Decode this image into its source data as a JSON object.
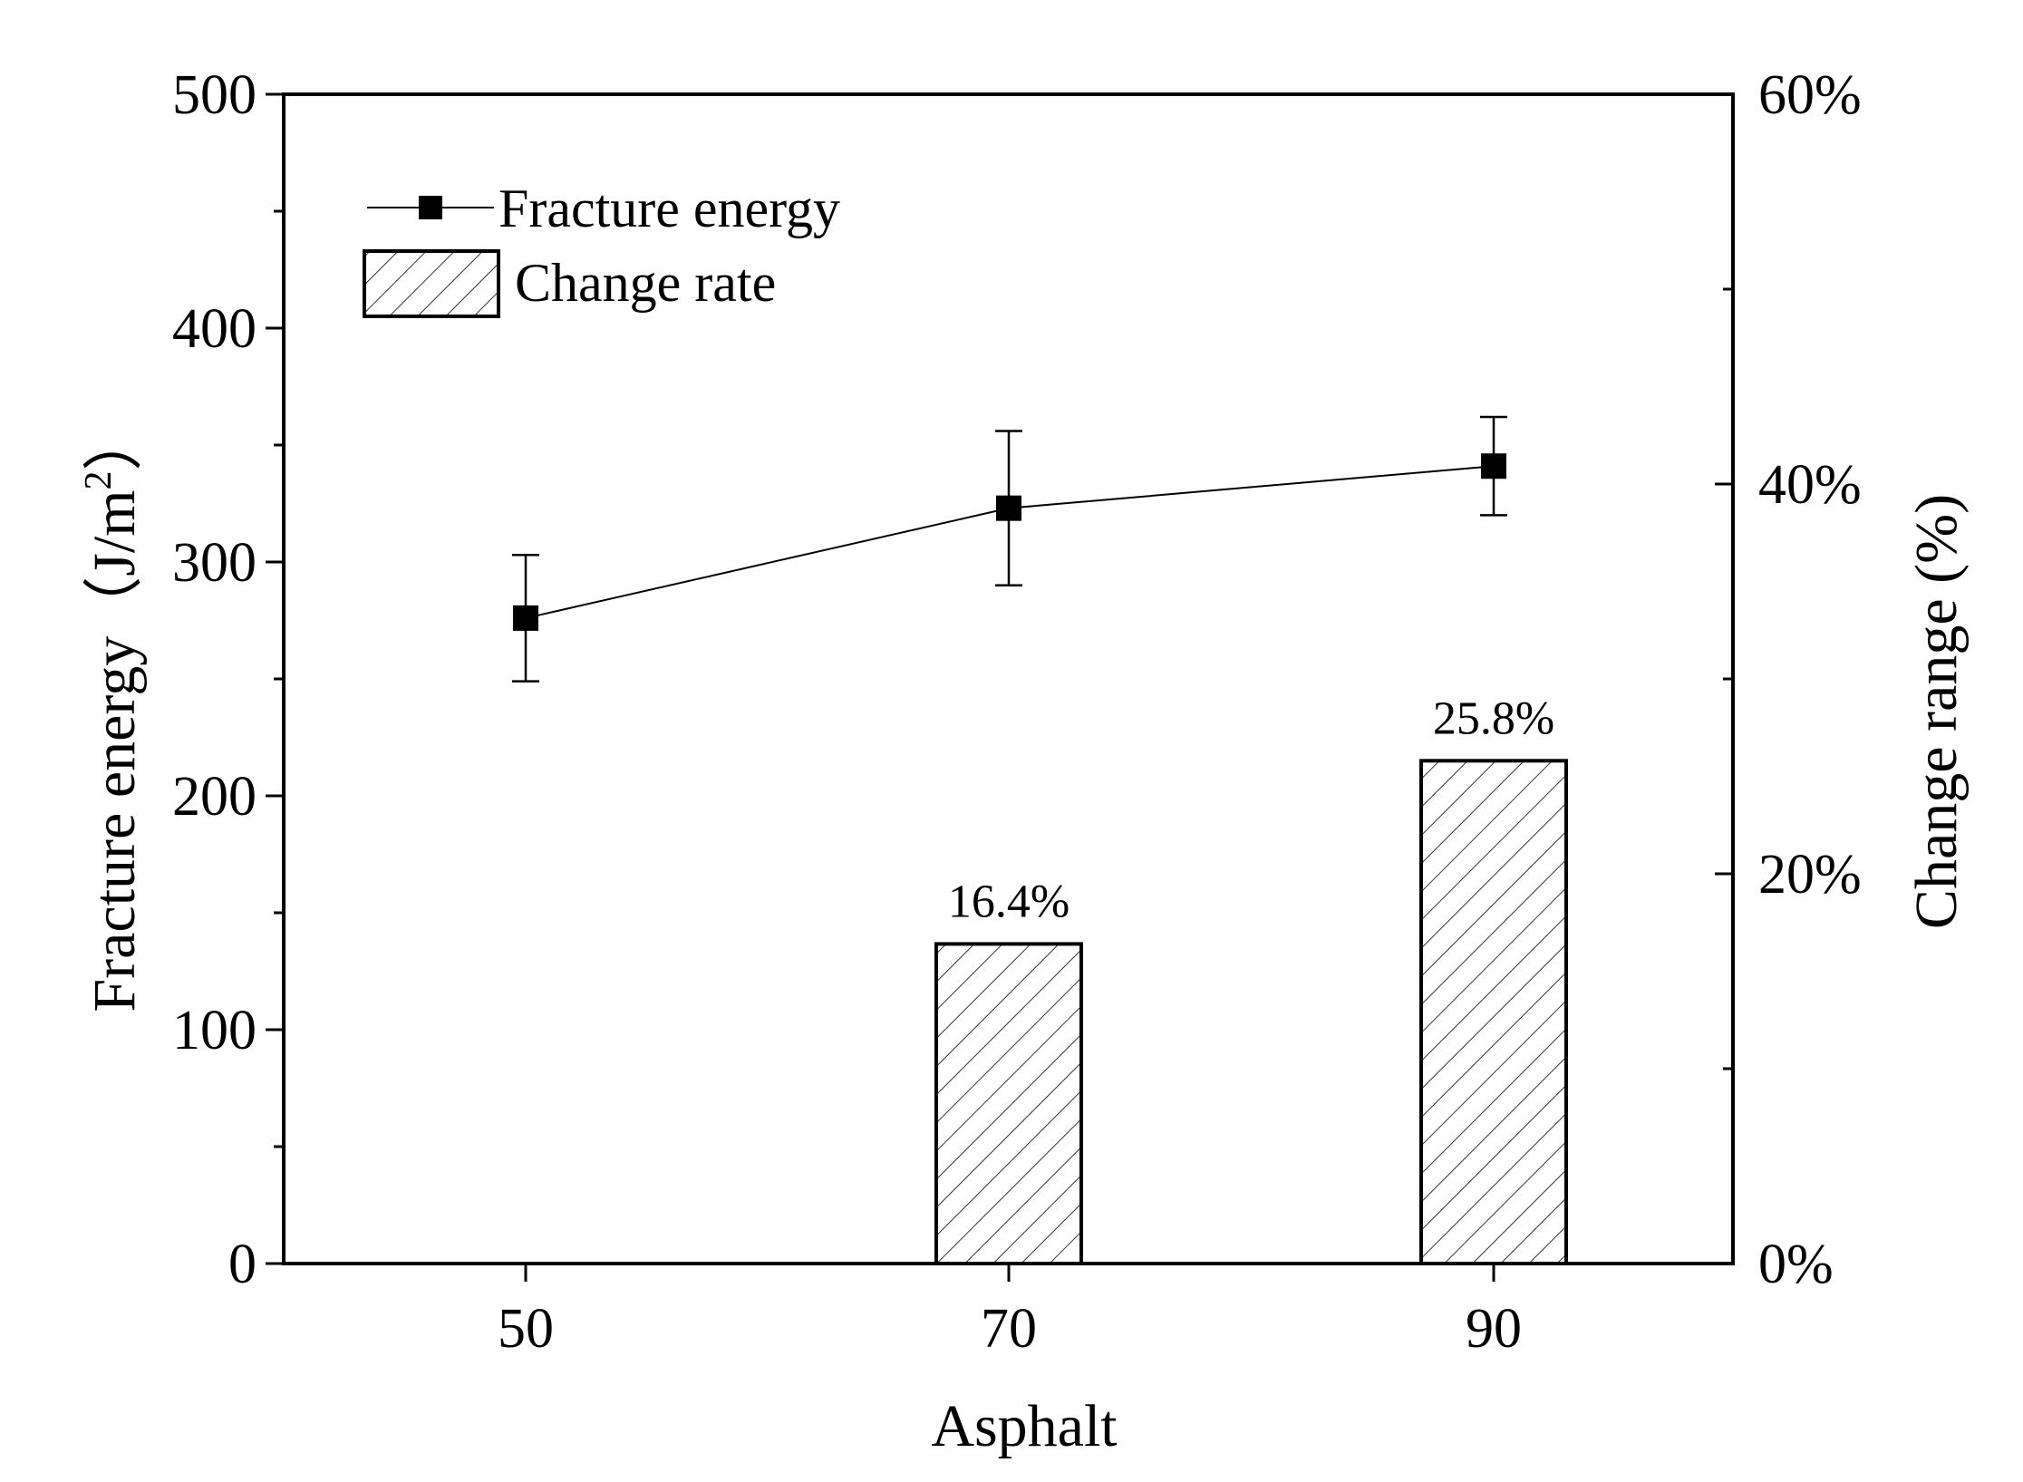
{
  "chart_data": {
    "type": "bar+line",
    "xlabel": "Asphalt",
    "categories": [
      "50",
      "70",
      "90"
    ],
    "y_left": {
      "label": "Fracture energy (J/m2)",
      "label_main": "Fracture energy（J/m",
      "label_sup": "2",
      "label_close": "）",
      "lim": [
        0,
        500
      ],
      "ticks": [
        0,
        100,
        200,
        300,
        400,
        500
      ]
    },
    "y_right": {
      "label": "Change range (%)",
      "lim": [
        0,
        60
      ],
      "ticks": [
        "0%",
        "20%",
        "40%",
        "60%"
      ],
      "tick_values": [
        0,
        20,
        40,
        60
      ]
    },
    "series": [
      {
        "name": "Fracture energy",
        "kind": "line",
        "axis": "left",
        "values": [
          276,
          323,
          341
        ],
        "error_low": [
          249,
          290,
          320
        ],
        "error_high": [
          303,
          356,
          362
        ],
        "color": "#000000"
      },
      {
        "name": "Change rate",
        "kind": "bar",
        "axis": "right",
        "values": [
          null,
          16.4,
          25.8
        ],
        "labels": [
          "",
          "16.4%",
          "25.8%"
        ],
        "pattern": "diagonal-hatch"
      }
    ],
    "legend": [
      "Fracture energy",
      "Change rate"
    ],
    "legend_position": "top-left",
    "grid": false
  }
}
